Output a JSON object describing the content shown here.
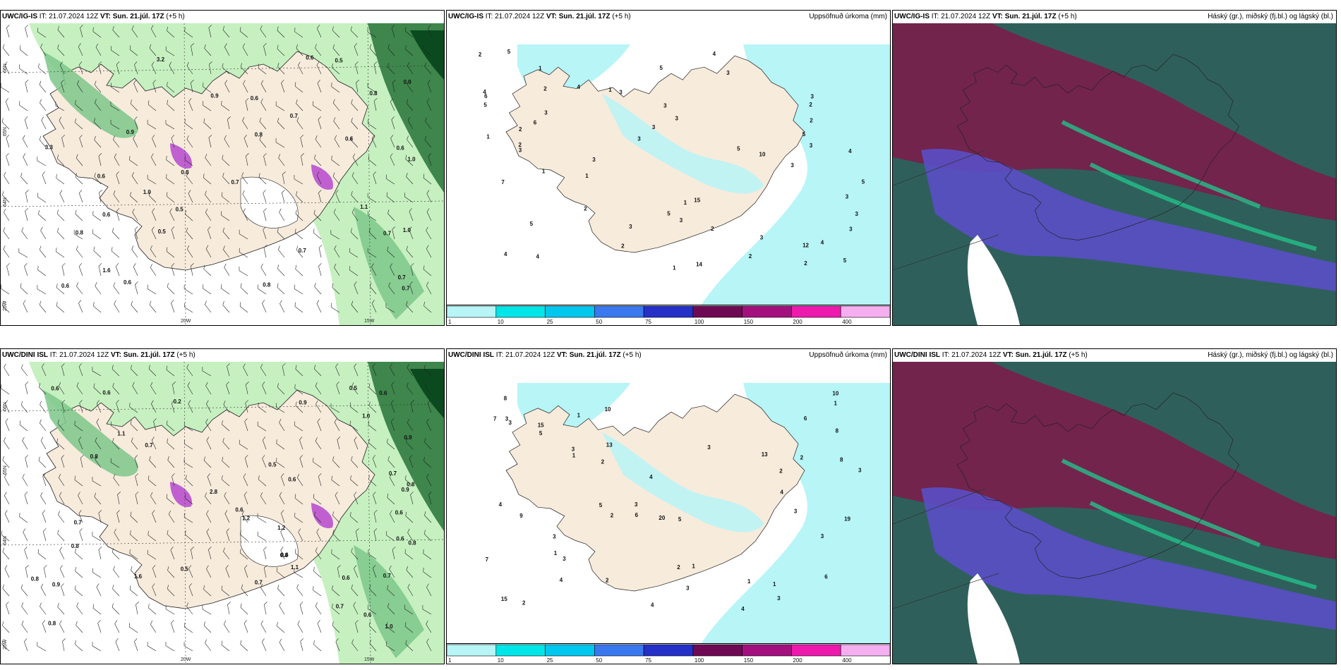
{
  "panels": [
    {
      "model": "UWC/IG-IS",
      "it_label": "IT:",
      "it_value": "21.07.2024 12Z",
      "vt_label": "VT:",
      "vt_value": "Sun. 21.júl. 17Z",
      "lead": "(+5 h)",
      "title": "",
      "type": "wind-precip",
      "lat_labels": [
        "66N",
        "65N",
        "64N"
      ],
      "lon_labels": [
        "20W",
        "15W"
      ],
      "corner_label": "25W",
      "values": [
        "0.6",
        "0.7",
        "1.0",
        "0.8",
        "1.0",
        "0.5",
        "0.6",
        "0.7",
        "0.8",
        "0.9",
        "1.1",
        "0.6",
        "0.5",
        "0.8",
        "0.7",
        "1.0",
        "3.3",
        "3.2",
        "0.9",
        "0.7",
        "0.6",
        "1.6",
        "0.6",
        "0.8",
        "0.5",
        "0.6",
        "0.7",
        "0.8",
        "0.9",
        "0.6",
        "0.7",
        "0.6"
      ]
    },
    {
      "model": "UWC/IG-IS",
      "it_label": "IT:",
      "it_value": "21.07.2024 12Z",
      "vt_label": "VT:",
      "vt_value": "Sun. 21.júl. 17Z",
      "lead": "(+5 h)",
      "title": "Uppsöfnuð úrkoma (mm)",
      "type": "accum-precip",
      "values": [
        "2",
        "1",
        "3",
        "5",
        "12",
        "14",
        "15",
        "2",
        "4",
        "3",
        "2",
        "3",
        "3",
        "5",
        "3",
        "1",
        "2",
        "3",
        "1",
        "2",
        "3",
        "1",
        "6",
        "5",
        "3",
        "4",
        "3",
        "2",
        "2",
        "4",
        "1",
        "3",
        "3",
        "6",
        "10",
        "4",
        "4",
        "5",
        "3",
        "7",
        "3",
        "5",
        "5",
        "3",
        "5",
        "2",
        "4",
        "5",
        "2",
        "1",
        "3",
        "3",
        "5",
        "3",
        "2",
        "3",
        "1",
        "4",
        "2"
      ],
      "legend": [
        "1",
        "10",
        "25",
        "50",
        "75",
        "100",
        "150",
        "200",
        "400"
      ],
      "legend_colors": [
        "#b7f5f7",
        "#00e6e8",
        "#00c7ee",
        "#3a78f0",
        "#2430c8",
        "#6e0a54",
        "#a3107e",
        "#ee1aae",
        "#f5aff0"
      ]
    },
    {
      "model": "UWC/IG-IS",
      "it_label": "IT:",
      "it_value": "21.07.2024 12Z",
      "vt_label": "VT:",
      "vt_value": "Sun. 21.júl. 17Z",
      "lead": "(+5 h)",
      "title": "Háský (gr.), miðský (fj.bl.) og lágský (bl.)",
      "type": "clouds"
    },
    {
      "model": "UWC/DINI ISL",
      "it_label": "IT:",
      "it_value": "21.07.2024 12Z",
      "vt_label": "VT:",
      "vt_value": "Sun. 21.júl. 17Z",
      "lead": "(+5 h)",
      "title": "",
      "type": "wind-precip",
      "lat_labels": [
        "66N",
        "65N",
        "64N"
      ],
      "lon_labels": [
        "20W",
        "15W"
      ],
      "corner_label": "25W",
      "values": [
        "0.7",
        "0.5",
        "0.2",
        "0.6",
        "0.8",
        "0.7",
        "0.6",
        "0.9",
        "1.1",
        "0.8",
        "0.6",
        "1.2",
        "0.6",
        "0.7",
        "0.8",
        "0.6",
        "1.0",
        "0.8",
        "0.9",
        "0.6",
        "0.5",
        "1.6",
        "2.8",
        "0.8",
        "0.7",
        "0.9",
        "0.6",
        "1.0",
        "0.8",
        "0.7",
        "0.6",
        "1.2",
        "0.6",
        "0.9",
        "0.7",
        "0.5",
        "1.1",
        "0.8",
        "0.6"
      ]
    },
    {
      "model": "UWC/DINI ISL",
      "it_label": "IT:",
      "it_value": "21.07.2024 12Z",
      "vt_label": "VT:",
      "vt_value": "Sun. 21.júl. 17Z",
      "lead": "(+5 h)",
      "title": "Uppsöfnuð úrkoma (mm)",
      "type": "accum-precip",
      "values": [
        "3",
        "1",
        "13",
        "3",
        "2",
        "10",
        "3",
        "4",
        "5",
        "3",
        "2",
        "1",
        "2",
        "3",
        "3",
        "2",
        "1",
        "2",
        "3",
        "4",
        "1",
        "3",
        "3",
        "5",
        "3",
        "3",
        "2",
        "3",
        "8",
        "4",
        "1",
        "4",
        "15",
        "19",
        "15",
        "20",
        "13",
        "9",
        "10",
        "7",
        "8",
        "8",
        "6",
        "6",
        "7",
        "1",
        "1",
        "5",
        "4",
        "2",
        "6",
        "4"
      ],
      "legend": [
        "1",
        "10",
        "25",
        "50",
        "75",
        "100",
        "150",
        "200",
        "400"
      ],
      "legend_colors": [
        "#b7f5f7",
        "#00e6e8",
        "#00c7ee",
        "#3a78f0",
        "#2430c8",
        "#6e0a54",
        "#a3107e",
        "#ee1aae",
        "#f5aff0"
      ]
    },
    {
      "model": "UWC/DINI ISL",
      "it_label": "IT:",
      "it_value": "21.07.2024 12Z",
      "vt_label": "VT:",
      "vt_value": "Sun. 21.júl. 17Z",
      "lead": "(+5 h)",
      "title": "Háský (gr.), miðský (fj.bl.) og lágský (bl.)",
      "type": "clouds"
    }
  ],
  "colors": {
    "land": "#f7ebdc",
    "sea": "#ffffff",
    "precip_light": "#c6f0c0",
    "precip_mid": "#7cc78a",
    "precip_dark": "#2f7a3f",
    "precip_vdark": "#0b4a1f",
    "snow": "#c060d0",
    "accum_light": "#b7f5f7",
    "cloud_high": "#2f5f5b",
    "cloud_mid": "#7a1e4a",
    "cloud_low": "#5a4fc6",
    "cloud_green": "#23c18a"
  }
}
